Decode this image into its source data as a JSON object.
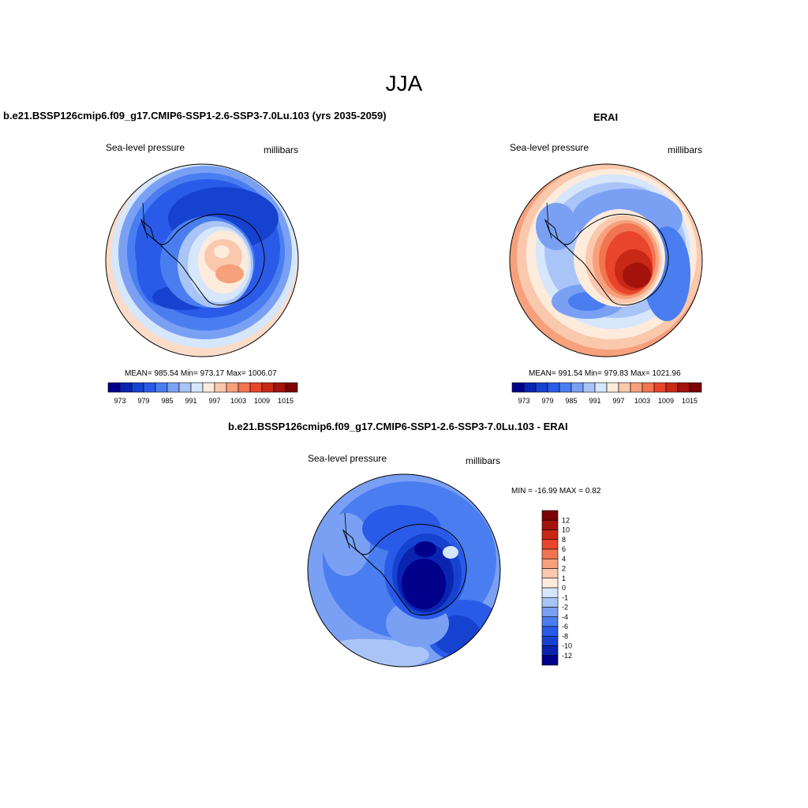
{
  "title": "JJA",
  "panels": [
    {
      "title": "b.e21.BSSP126cmip6.f09_g17.CMIP6-SSP1-2.6-SSP3-7.0Lu.103 (yrs 2035-2059)",
      "left_label": "Sea-level pressure",
      "right_label": "millibars",
      "stats": "MEAN= 985.54  Min= 973.17  Max= 1006.07"
    },
    {
      "title": "ERAI",
      "left_label": "Sea-level pressure",
      "right_label": "millibars",
      "stats": "MEAN= 991.54  Min= 979.83  Max= 1021.96"
    },
    {
      "title": "b.e21.BSSP126cmip6.f09_g17.CMIP6-SSP1-2.6-SSP3-7.0Lu.103 - ERAI",
      "left_label": "Sea-level pressure",
      "right_label": "millibars",
      "stats": "MIN = -16.99 MAX =   0.82"
    }
  ],
  "colorbar_top": {
    "tick_labels": [
      "973",
      "979",
      "985",
      "991",
      "997",
      "1003",
      "1009",
      "1015"
    ],
    "colors": [
      "#00008a",
      "#0a24b0",
      "#1642d0",
      "#2a5be8",
      "#4a7ef0",
      "#7aa0f4",
      "#a9c4f7",
      "#d6e6fb",
      "#fdebdc",
      "#fac8ad",
      "#f7a07c",
      "#f27450",
      "#e8452c",
      "#c92816",
      "#a3130b",
      "#7a0504"
    ]
  },
  "colorbar_diff": {
    "labels": [
      "12",
      "10",
      "8",
      "6",
      "4",
      "2",
      "1",
      "0",
      "-1",
      "-2",
      "-4",
      "-6",
      "-8",
      "-10",
      "-12"
    ],
    "colors": [
      "#7a0504",
      "#a3130b",
      "#c92816",
      "#e8452c",
      "#f27450",
      "#f7a07c",
      "#fac8ad",
      "#fdebdc",
      "#d6e6fb",
      "#a9c4f7",
      "#7aa0f4",
      "#4a7ef0",
      "#2a5be8",
      "#1642d0",
      "#0a24b0",
      "#00008a"
    ]
  },
  "palette": {
    "ocean_mid": "#2f62e0",
    "ocean_light": "#5d8cf0",
    "ocean_dark": "#1845d0",
    "ring_light": "#cfe0fa",
    "ring_warm": "#fbdcc9"
  }
}
